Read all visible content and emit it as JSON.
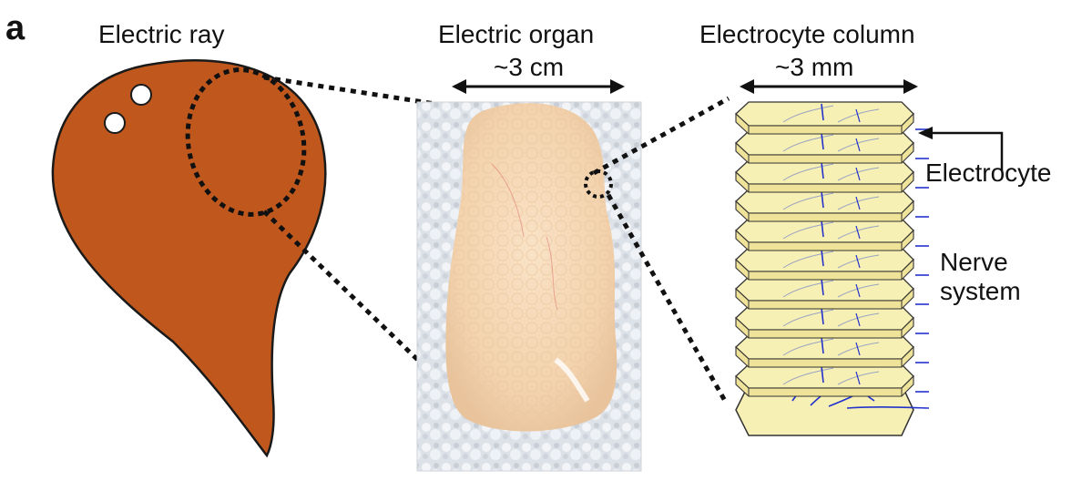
{
  "panel_label": "a",
  "sections": {
    "ray": {
      "title": "Electric ray"
    },
    "organ": {
      "title": "Electric organ",
      "dimension": "~3 cm"
    },
    "column": {
      "title": "Electrocyte column",
      "dimension": "~3 mm",
      "label_electrocyte": "Electrocyte",
      "label_nerve": "Nerve\nsystem"
    }
  },
  "colors": {
    "ray_body": "#c0581d",
    "electrocyte_fill": "#f7f0b4",
    "nerve": "#2233cc",
    "organ_tissue": "#f5d6b3",
    "ice": "#dfe3e8"
  },
  "column_layers": 10
}
